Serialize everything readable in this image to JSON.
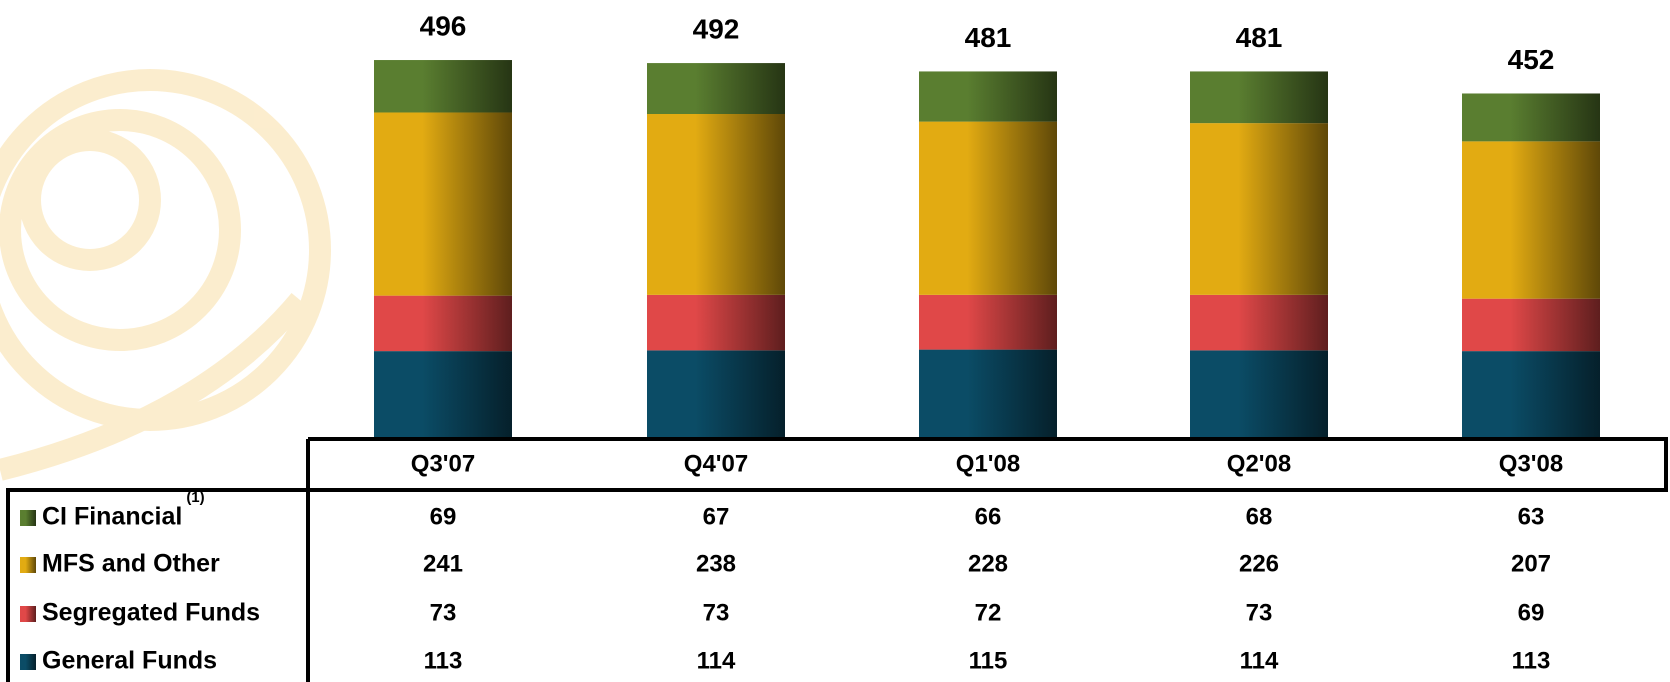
{
  "chart_data": {
    "type": "stacked-bar",
    "categories": [
      "Q3'07",
      "Q4'07",
      "Q1'08",
      "Q2'08",
      "Q3'08"
    ],
    "series": [
      {
        "name": "CI Financial",
        "color": "#5a7e30",
        "values": [
          69,
          67,
          66,
          68,
          63
        ]
      },
      {
        "name": "MFS and Other",
        "color": "#e2ab12",
        "values": [
          241,
          238,
          228,
          226,
          207
        ]
      },
      {
        "name": "Segregated Funds",
        "color": "#e04848",
        "values": [
          73,
          73,
          72,
          73,
          69
        ]
      },
      {
        "name": "General Funds",
        "color": "#0b4c66",
        "values": [
          113,
          114,
          115,
          114,
          113
        ]
      }
    ],
    "totals": [
      496,
      492,
      481,
      481,
      452
    ],
    "series_note": "(1)",
    "ylim": [
      0,
      500
    ]
  }
}
